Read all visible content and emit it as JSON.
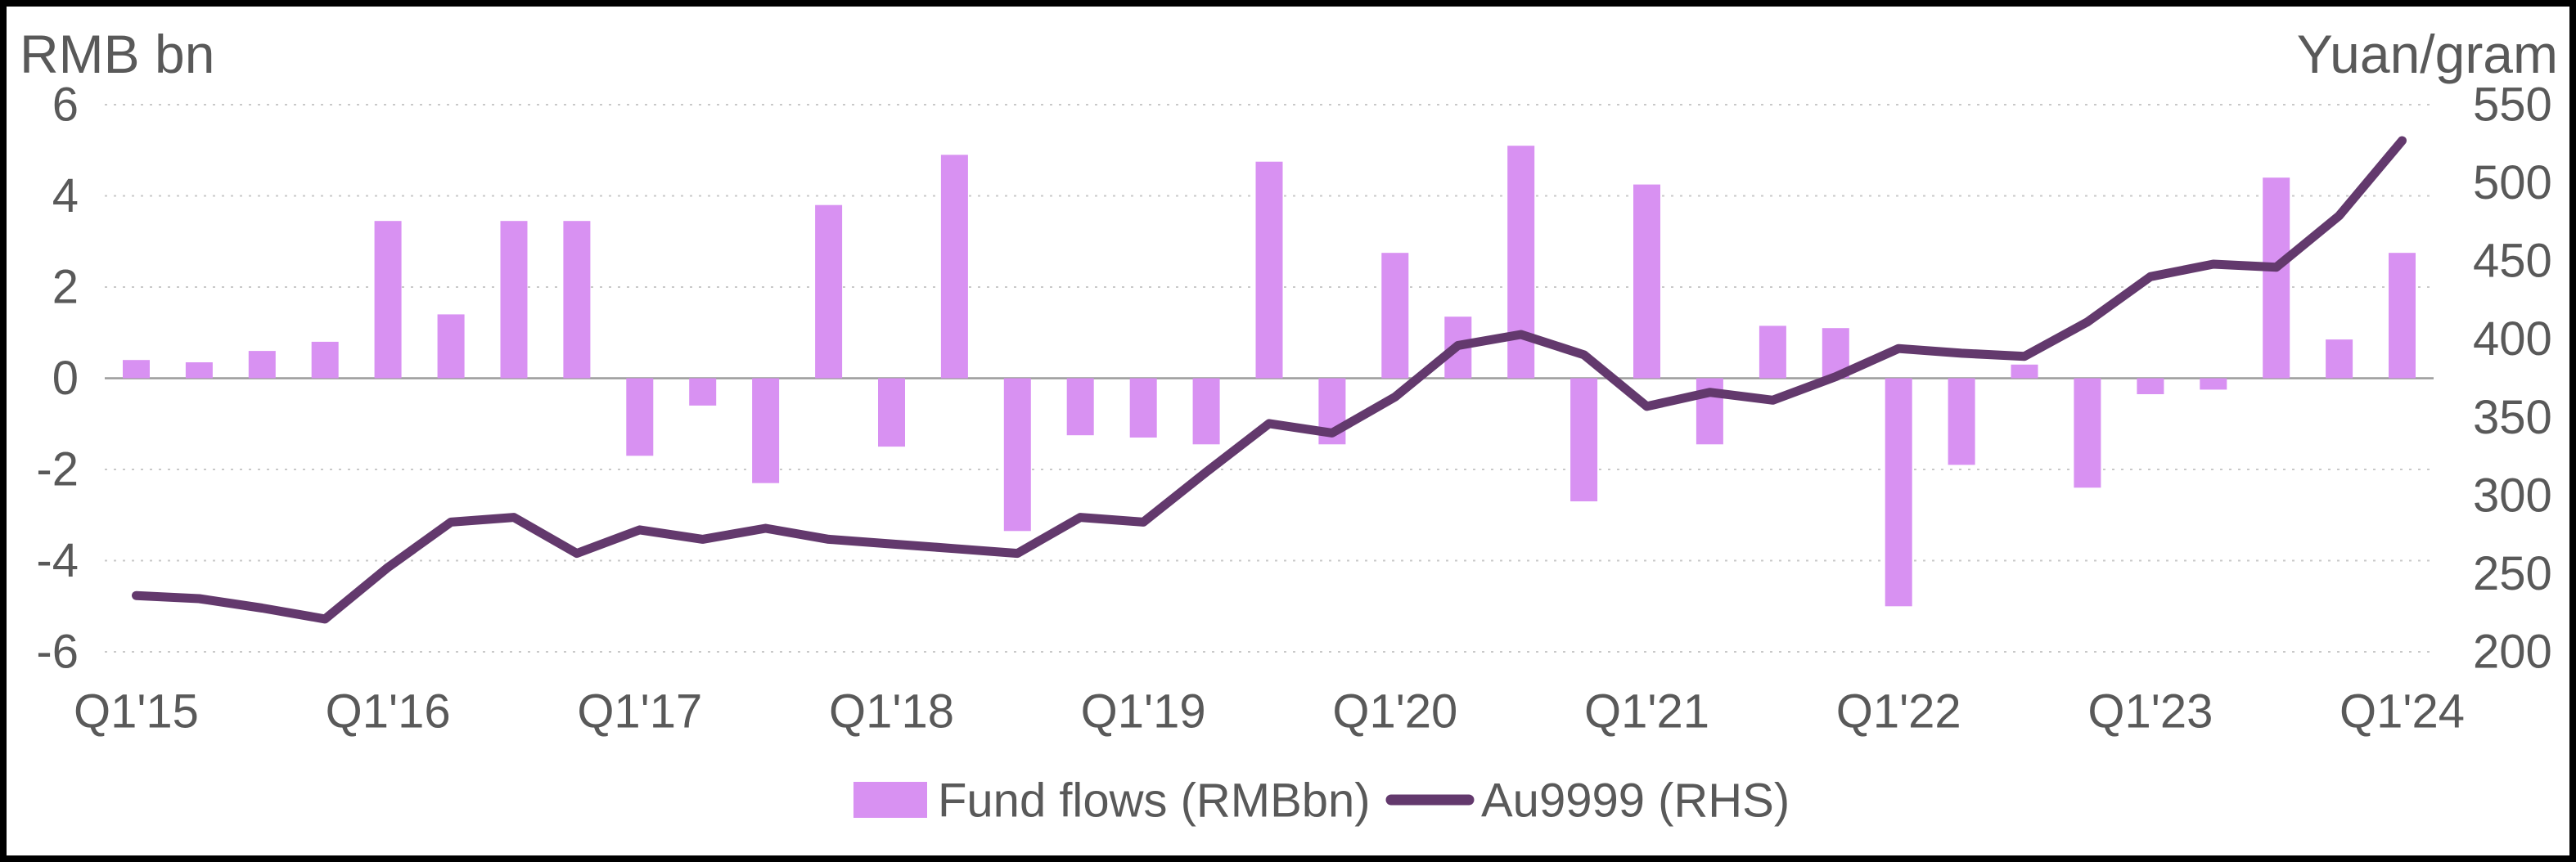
{
  "frame": {
    "background": "#FFFFFF",
    "border_color": "#000000"
  },
  "colors": {
    "text": "#595959",
    "gridline": "#C9C9C9",
    "zero_line": "#9B9B9B",
    "bar_fill": "#D891F2",
    "line_stroke": "#63396D"
  },
  "chart_data": {
    "type": "combo",
    "title": "",
    "categories": [
      "Q1'15",
      "Q2'15",
      "Q3'15",
      "Q4'15",
      "Q1'16",
      "Q2'16",
      "Q3'16",
      "Q4'16",
      "Q1'17",
      "Q2'17",
      "Q3'17",
      "Q4'17",
      "Q1'18",
      "Q2'18",
      "Q3'18",
      "Q4'18",
      "Q1'19",
      "Q2'19",
      "Q3'19",
      "Q4'19",
      "Q1'20",
      "Q2'20",
      "Q3'20",
      "Q4'20",
      "Q1'21",
      "Q2'21",
      "Q3'21",
      "Q4'21",
      "Q1'22",
      "Q2'22",
      "Q3'22",
      "Q4'22",
      "Q1'23",
      "Q2'23",
      "Q3'23",
      "Q4'23",
      "Q1'24"
    ],
    "x_tick_labels": [
      "Q1'15",
      "Q1'16",
      "Q1'17",
      "Q1'18",
      "Q1'19",
      "Q1'20",
      "Q1'21",
      "Q1'22",
      "Q1'23",
      "Q1'24"
    ],
    "x_tick_every": 4,
    "series": [
      {
        "name": "Fund flows (RMBbn)",
        "type": "bar",
        "axis": "left",
        "color": "#D891F2",
        "values": [
          0.4,
          0.35,
          0.6,
          0.8,
          3.45,
          1.4,
          3.45,
          3.45,
          -1.7,
          -0.6,
          -2.3,
          3.8,
          -1.5,
          4.9,
          -3.35,
          -1.25,
          -1.3,
          -1.45,
          4.75,
          -1.45,
          2.75,
          1.35,
          5.1,
          -2.7,
          4.25,
          -1.45,
          1.15,
          1.1,
          -5.0,
          -1.9,
          0.3,
          -2.4,
          -0.35,
          -0.25,
          4.4,
          0.85,
          2.75
        ]
      },
      {
        "name": "Au9999 (RHS)",
        "type": "line",
        "axis": "right",
        "color": "#63396D",
        "values": [
          236,
          234,
          228,
          221,
          254,
          283,
          286,
          263,
          278,
          272,
          279,
          272,
          269,
          266,
          263,
          286,
          283,
          315,
          346,
          340,
          363,
          396,
          403,
          390,
          357,
          366,
          361,
          376,
          394,
          391,
          389,
          411,
          440,
          448,
          446,
          479,
          527
        ]
      }
    ],
    "left_axis": {
      "title": "RMB bn",
      "min": -6,
      "max": 6,
      "step": 2,
      "ticks": [
        6,
        4,
        2,
        0,
        -2,
        -4,
        -6
      ]
    },
    "right_axis": {
      "title": "Yuan/gram",
      "min": 200,
      "max": 550,
      "step": 50,
      "ticks": [
        550,
        500,
        450,
        400,
        350,
        300,
        250,
        200
      ]
    },
    "grid": "horizontal-dotted",
    "legend_position": "bottom-center"
  }
}
